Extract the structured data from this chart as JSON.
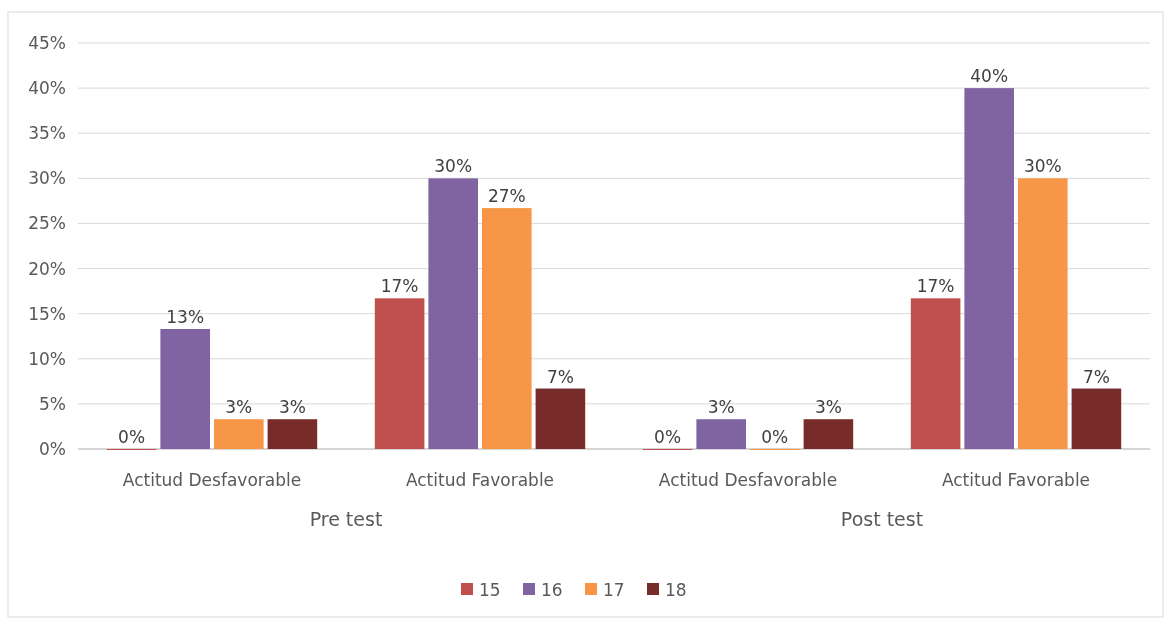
{
  "chart_data": {
    "type": "bar",
    "categories": [
      "Actitud Desfavorable",
      "Actitud Favorable",
      "Actitud Desfavorable",
      "Actitud Favorable"
    ],
    "annotations": [
      "Pre test",
      "Post test"
    ],
    "series": [
      {
        "name": "15",
        "color": "#c0504d",
        "values": [
          0,
          16.7,
          0,
          16.7
        ],
        "value_labels": [
          "0%",
          "17%",
          "0%",
          "17%"
        ]
      },
      {
        "name": "16",
        "color": "#8064a2",
        "values": [
          13.3,
          30,
          3.3,
          40
        ],
        "value_labels": [
          "13%",
          "30%",
          "3%",
          "40%"
        ]
      },
      {
        "name": "17",
        "color": "#f79646",
        "values": [
          3.3,
          26.7,
          0,
          30
        ],
        "value_labels": [
          "3%",
          "27%",
          "0%",
          "30%"
        ]
      },
      {
        "name": "18",
        "color": "#772c2a",
        "values": [
          3.3,
          6.7,
          3.3,
          6.7
        ],
        "value_labels": [
          "3%",
          "7%",
          "3%",
          "7%"
        ]
      }
    ],
    "ylim": [
      0,
      45
    ],
    "yticks": [
      {
        "value": 0,
        "label": "0%"
      },
      {
        "value": 5,
        "label": "5%"
      },
      {
        "value": 10,
        "label": "10%"
      },
      {
        "value": 15,
        "label": "15%"
      },
      {
        "value": 20,
        "label": "20%"
      },
      {
        "value": 25,
        "label": "25%"
      },
      {
        "value": 30,
        "label": "30%"
      },
      {
        "value": 35,
        "label": "35%"
      },
      {
        "value": 40,
        "label": "40%"
      },
      {
        "value": 45,
        "label": "45%"
      }
    ],
    "grid": "y",
    "legend": "bottom"
  }
}
